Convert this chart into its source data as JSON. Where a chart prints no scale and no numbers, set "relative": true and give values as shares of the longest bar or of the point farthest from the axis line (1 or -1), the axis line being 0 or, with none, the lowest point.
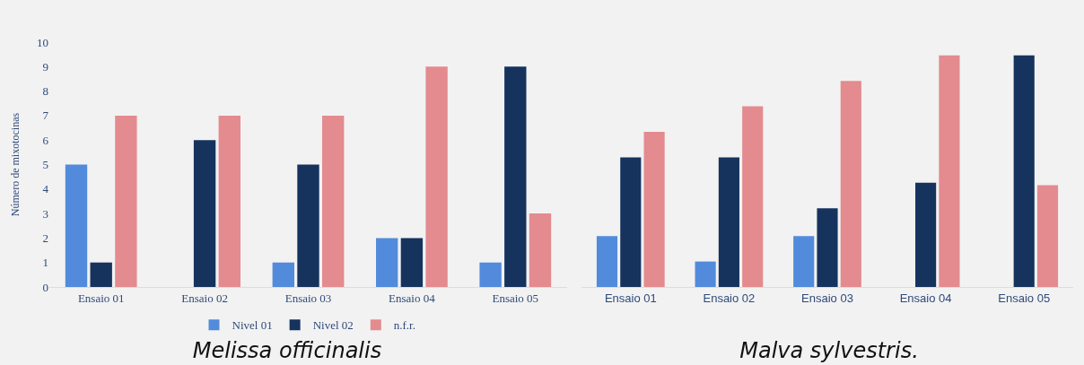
{
  "chart_data": [
    {
      "type": "bar",
      "title": "Melissa officinalis",
      "ylabel": "Número de mixotocinas",
      "categories": [
        "Ensaio 01",
        "Ensaio 02",
        "Ensaio 03",
        "Ensaio 04",
        "Ensaio 05"
      ],
      "series": [
        {
          "name": "Nivel 01",
          "color": "#528bdb",
          "values": [
            5,
            0,
            1,
            2,
            1
          ]
        },
        {
          "name": "Nivel 02",
          "color": "#16335e",
          "values": [
            1,
            6,
            5,
            2,
            9
          ]
        },
        {
          "name": "n.f.r.",
          "color": "#e38b8f",
          "values": [
            7,
            7,
            7,
            9,
            3
          ]
        }
      ],
      "ylim": [
        0,
        10
      ],
      "yticks": [
        0,
        1,
        2,
        3,
        4,
        5,
        6,
        7,
        8,
        9,
        10
      ],
      "grid": false,
      "legend": "bottom"
    },
    {
      "type": "bar",
      "title": "Malva sylvestris.",
      "relative": true,
      "categories": [
        "Ensaio 01",
        "Ensaio 02",
        "Ensaio 03",
        "Ensaio 04",
        "Ensaio 05"
      ],
      "series": [
        {
          "color": "#528bdb",
          "values": [
            0.22,
            0.11,
            0.22,
            0,
            0
          ]
        },
        {
          "color": "#16335e",
          "values": [
            0.56,
            0.56,
            0.34,
            0.45,
            1
          ]
        },
        {
          "color": "#e38b8f",
          "values": [
            0.67,
            0.78,
            0.89,
            1,
            0.44
          ]
        }
      ],
      "grid": false,
      "legend": false
    }
  ]
}
